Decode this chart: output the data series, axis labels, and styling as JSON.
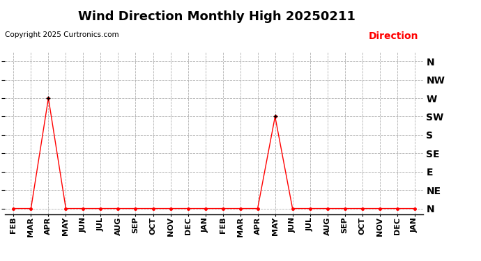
{
  "title": "Wind Direction Monthly High 20250211",
  "copyright": "Copyright 2025 Curtronics.com",
  "legend_label": "Direction",
  "legend_color": "#ff0000",
  "line_color": "#ff0000",
  "marker_color": "#000000",
  "background_color": "#ffffff",
  "grid_color": "#b0b0b0",
  "x_labels": [
    "FEB",
    "MAR",
    "APR",
    "MAY",
    "JUN",
    "JUL",
    "AUG",
    "SEP",
    "OCT",
    "NOV",
    "DEC",
    "JAN",
    "FEB",
    "MAR",
    "APR",
    "MAY",
    "JUN",
    "JUL",
    "AUG",
    "SEP",
    "OCT",
    "NOV",
    "DEC",
    "JAN"
  ],
  "y_labels": [
    "N",
    "NE",
    "E",
    "SE",
    "S",
    "SW",
    "W",
    "NW",
    "N"
  ],
  "y_values": [
    0,
    1,
    2,
    3,
    4,
    5,
    6,
    7,
    8
  ],
  "data_values": [
    0,
    0,
    6,
    0,
    0,
    0,
    0,
    0,
    0,
    0,
    0,
    0,
    0,
    0,
    0,
    5,
    0,
    0,
    0,
    0,
    0,
    0,
    0,
    0
  ],
  "num_points": 24,
  "title_fontsize": 13,
  "copyright_fontsize": 7.5,
  "legend_fontsize": 10,
  "tick_fontsize": 8,
  "ylabel_fontsize": 10
}
